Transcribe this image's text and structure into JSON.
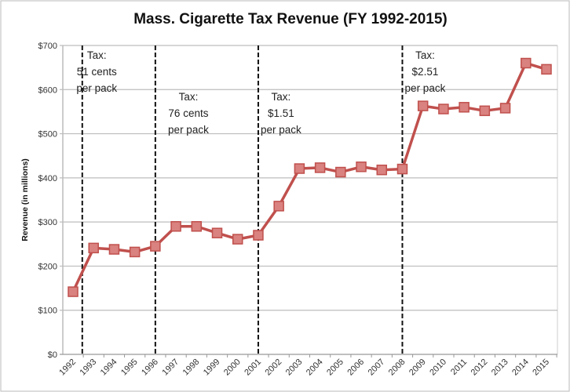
{
  "chart_data": {
    "type": "line",
    "title": "Mass. Cigarette Tax Revenue (FY 1992-2015)",
    "xlabel": "",
    "ylabel": "Revenue (in millions)",
    "ylim": [
      0,
      700
    ],
    "yticks": [
      0,
      100,
      200,
      300,
      400,
      500,
      600,
      700
    ],
    "ytick_labels": [
      "$0",
      "$100",
      "$200",
      "$300",
      "$400",
      "$500",
      "$600",
      "$700"
    ],
    "grid": true,
    "categories": [
      "1992",
      "1993",
      "1994",
      "1995",
      "1996",
      "1997",
      "1998",
      "1999",
      "2000",
      "2001",
      "2002",
      "2003",
      "2004",
      "2005",
      "2006",
      "2007",
      "2008",
      "2009",
      "2010",
      "2011",
      "2012",
      "2013",
      "2014",
      "2015"
    ],
    "values": [
      142,
      241,
      238,
      232,
      245,
      290,
      290,
      275,
      261,
      270,
      336,
      421,
      423,
      413,
      425,
      418,
      420,
      563,
      556,
      560,
      552,
      558,
      660,
      646
    ],
    "series_color": "#c0504d",
    "marker_color": "#d9827f",
    "annotations": [
      {
        "x": 1992.45,
        "lines": [
          "Tax:",
          "51 cents",
          "per pack"
        ]
      },
      {
        "x": 1996,
        "lines": [
          "Tax:",
          "76 cents",
          "per pack"
        ]
      },
      {
        "x": 2001,
        "lines": [
          "Tax:",
          "$1.51",
          "per pack"
        ]
      },
      {
        "x": 2008,
        "lines": [
          "Tax:",
          "$2.51",
          "per pack"
        ]
      }
    ]
  }
}
